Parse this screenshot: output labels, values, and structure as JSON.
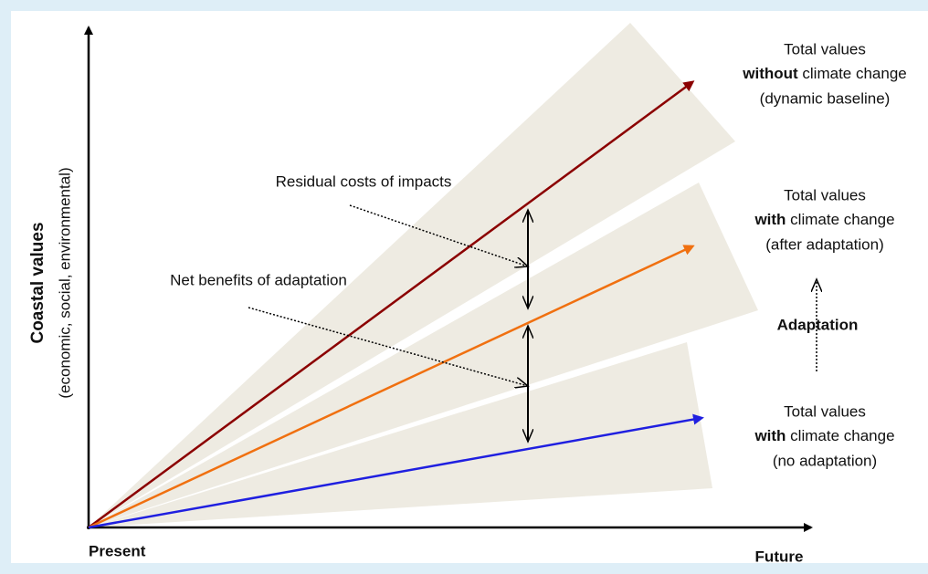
{
  "axes": {
    "y_title": "Coastal values",
    "y_subtitle": "(economic, social, environmental)",
    "x_start": "Present",
    "x_end": "Future"
  },
  "annotations": {
    "residual": "Residual costs of impacts",
    "net_benefits": "Net benefits of adaptation",
    "adaptation": "Adaptation"
  },
  "scenarios": [
    {
      "line1": "Total values",
      "bold": "without",
      "rest": " climate change",
      "line3": "(dynamic baseline)"
    },
    {
      "line1": "Total values",
      "bold": "with",
      "rest": " climate change",
      "line3": "(after adaptation)"
    },
    {
      "line1": "Total values",
      "bold": "with",
      "rest": " climate change",
      "line3": "(no adaptation)"
    }
  ]
}
